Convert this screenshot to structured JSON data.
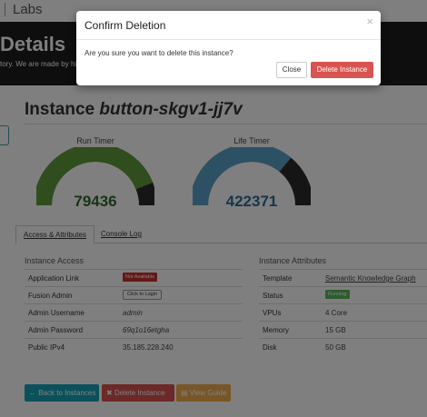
{
  "topbar": {
    "brand": "Labs"
  },
  "hero": {
    "title": "Details",
    "tagline": "tory. We are made by his"
  },
  "instance": {
    "prefix": "Instance",
    "name": "button-skgv1-jj7v"
  },
  "gauges": {
    "run": {
      "label": "Run Timer",
      "value": "79436",
      "color": "#5e9a3a",
      "fill_fraction": 0.88
    },
    "life": {
      "label": "Life Timer",
      "value": "422371",
      "color": "#5aa3c8",
      "fill_fraction": 0.72
    }
  },
  "tabs": [
    {
      "label": "Access & Attributes",
      "active": true
    },
    {
      "label": "Console Log",
      "active": false
    }
  ],
  "access": {
    "title": "Instance Access",
    "rows": [
      {
        "key": "Application Link",
        "value": "Not Available"
      },
      {
        "key": "Fusion Admin",
        "value": "Click to Login"
      },
      {
        "key": "Admin Username",
        "value": "admin"
      },
      {
        "key": "Admin Password",
        "value": "69q1o16etgha"
      },
      {
        "key": "Public IPv4",
        "value": "35.185.228.240"
      }
    ]
  },
  "attributes": {
    "title": "Instance Attributes",
    "rows": [
      {
        "key": "Template",
        "value": "Semantic Knowledge Graph"
      },
      {
        "key": "Status",
        "value": "Running"
      },
      {
        "key": "VPUs",
        "value": "4 Core"
      },
      {
        "key": "Memory",
        "value": "15 GB"
      },
      {
        "key": "Disk",
        "value": "50 GB"
      }
    ]
  },
  "actions": {
    "back": "Back to Instances",
    "delete": "Delete Instance",
    "guide": "View Guide"
  },
  "modal": {
    "title": "Confirm Deletion",
    "close_glyph": "×",
    "body": "Are you sure you want to delete this instance?",
    "close_label": "Close",
    "delete_label": "Delete Instance"
  },
  "colors": {
    "danger": "#d9534f",
    "teal": "#17a2b8",
    "amber": "#f0ad4e",
    "success": "#5cb85c"
  }
}
